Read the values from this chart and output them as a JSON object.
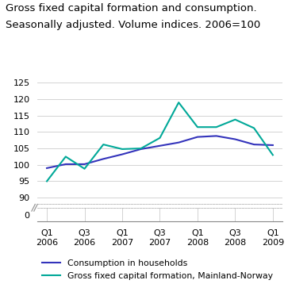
{
  "title_line1": "Gross fixed capital formation and consumption.",
  "title_line2": "Seasonally adjusted. Volume indices. 2006=100",
  "x_labels": [
    "Q1\n2006",
    "Q3\n2006",
    "Q1\n2007",
    "Q3\n2007",
    "Q1\n2008",
    "Q3\n2008",
    "Q1\n2009"
  ],
  "x_ticks_idx": [
    0,
    2,
    4,
    6,
    8,
    10,
    12
  ],
  "consumption": {
    "x": [
      0,
      1,
      2,
      3,
      4,
      5,
      6,
      7,
      8,
      9,
      10,
      11,
      12
    ],
    "y": [
      99.0,
      100.2,
      100.2,
      101.8,
      103.2,
      104.8,
      105.8,
      106.8,
      108.5,
      108.8,
      107.8,
      106.2,
      106.0
    ],
    "color": "#3333bb",
    "label": "Consumption in households",
    "linewidth": 1.5
  },
  "gfcf": {
    "x": [
      0,
      1,
      2,
      3,
      4,
      5,
      6,
      7,
      8,
      9,
      10,
      11,
      12
    ],
    "y": [
      95.0,
      102.5,
      98.8,
      106.2,
      104.8,
      105.0,
      108.2,
      119.0,
      111.5,
      111.5,
      113.8,
      111.2,
      103.0
    ],
    "color": "#00a898",
    "label": "Gross fixed capital formation, Mainland-Norway",
    "linewidth": 1.5
  },
  "yticks_main": [
    90,
    95,
    100,
    105,
    110,
    115,
    120,
    125
  ],
  "ytick_zero": 0,
  "background_color": "#ffffff",
  "grid_color": "#cccccc",
  "title_fontsize": 9.5,
  "tick_fontsize": 8,
  "legend_fontsize": 7.8
}
